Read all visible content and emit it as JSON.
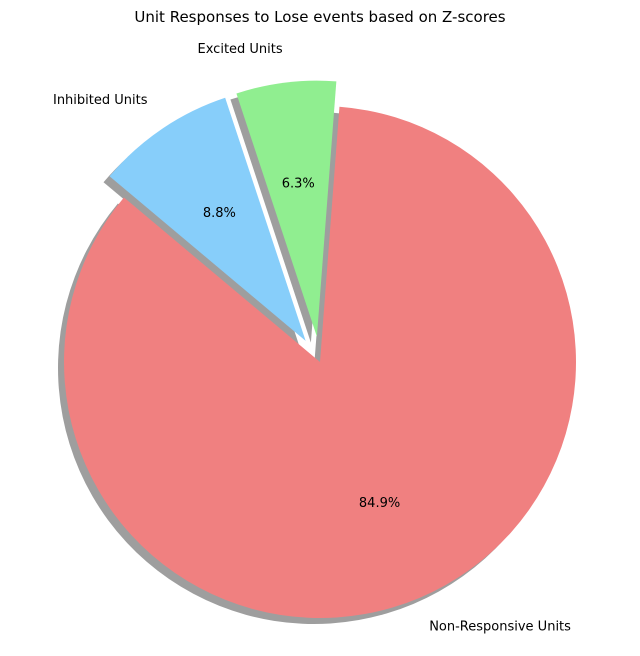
{
  "chart_data": {
    "type": "pie",
    "title": "Unit Responses to Lose events based on Z-scores",
    "slices": [
      {
        "label": "Non-Responsive Units",
        "value": 84.9,
        "pct_label": "84.9%",
        "color": "#f08080",
        "explode": 0
      },
      {
        "label": "Excited Units",
        "value": 6.3,
        "pct_label": "6.3%",
        "color": "#90ee90",
        "explode": 0.1
      },
      {
        "label": "Inhibited Units",
        "value": 8.8,
        "pct_label": "8.8%",
        "color": "#87cefa",
        "explode": 0.1
      }
    ],
    "start_angle_deg": 140,
    "shadow": true,
    "legend": "none"
  }
}
